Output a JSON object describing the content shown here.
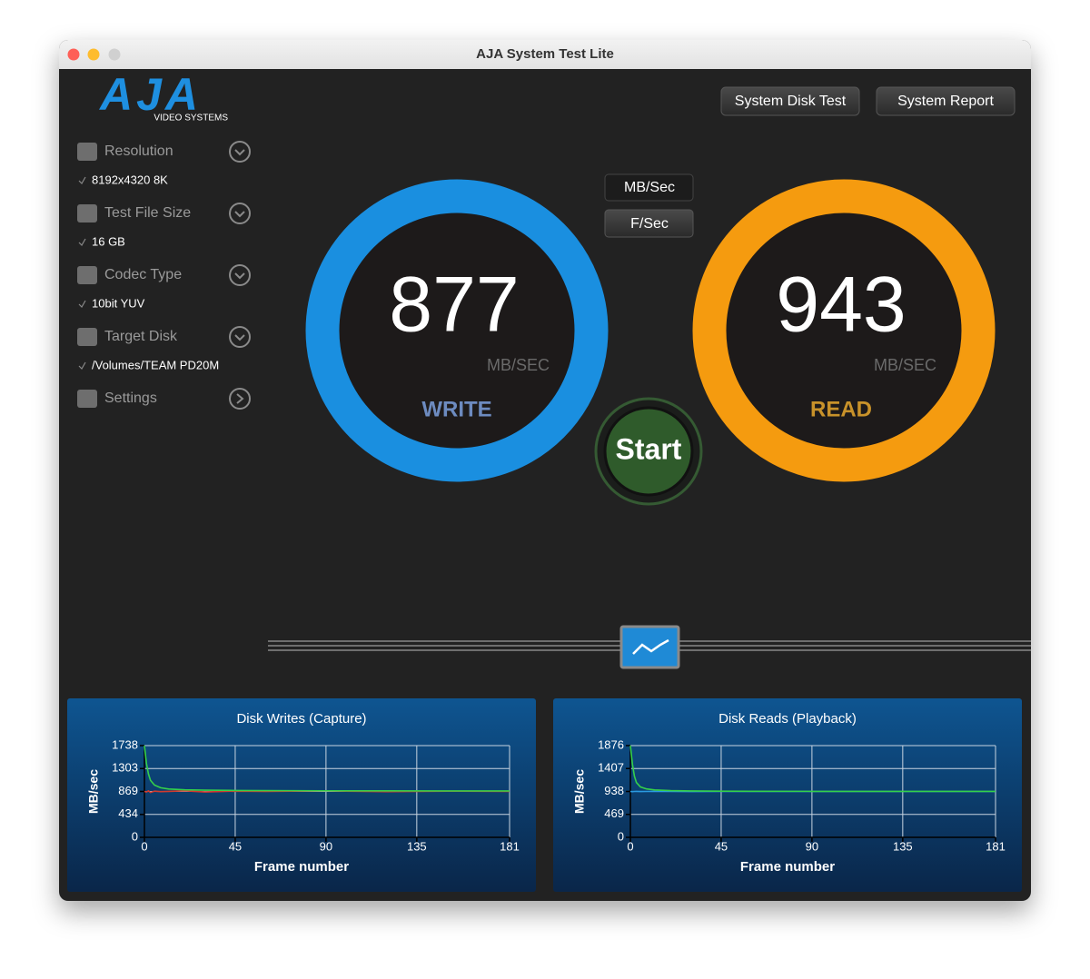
{
  "window": {
    "title": "AJA System Test Lite"
  },
  "logo": {
    "text": "AJA",
    "subtitle": "VIDEO SYSTEMS"
  },
  "header": {
    "buttons": [
      "System Disk Test",
      "System Report"
    ]
  },
  "sidebar": {
    "items": [
      {
        "label": "Resolution",
        "value": "8192x4320 8K"
      },
      {
        "label": "Test File Size",
        "value": "16 GB"
      },
      {
        "label": "Codec Type",
        "value": "10bit YUV"
      },
      {
        "label": "Target Disk",
        "value": "/Volumes/TEAM PD20M"
      },
      {
        "label": "Settings"
      }
    ]
  },
  "unit_toggle": [
    "MB/Sec",
    "F/Sec"
  ],
  "gauges": {
    "write": {
      "value": 877,
      "unit": "MB/SEC",
      "label": "WRITE"
    },
    "read": {
      "value": 943,
      "unit": "MB/SEC",
      "label": "READ"
    }
  },
  "start_button": "Start",
  "chart_data": [
    {
      "type": "line",
      "title": "Disk Writes (Capture)",
      "y_label": "MB/sec",
      "x_label": "Frame number",
      "x": [
        0,
        1,
        2,
        3,
        5,
        8,
        12,
        20,
        30,
        45,
        60,
        90,
        120,
        150,
        181
      ],
      "series": [
        {
          "color": "#d03a2e",
          "values": [
            869,
            860,
            880,
            850,
            875,
            865,
            870,
            880,
            860,
            875,
            870,
            880,
            865,
            875,
            870
          ]
        },
        {
          "color": "#35d04a",
          "values": [
            1738,
            1400,
            1200,
            1080,
            990,
            940,
            915,
            900,
            893,
            888,
            885,
            882,
            880,
            879,
            878
          ]
        }
      ],
      "xlim": [
        0,
        181
      ],
      "xticks": [
        0,
        45,
        90,
        135,
        181
      ],
      "ylim": [
        0,
        1738
      ],
      "yticks": [
        0,
        434,
        869,
        1303,
        1738
      ],
      "grid": true
    },
    {
      "type": "line",
      "title": "Disk Reads (Playback)",
      "y_label": "MB/sec",
      "x_label": "Frame number",
      "x": [
        0,
        1,
        2,
        3,
        5,
        8,
        12,
        20,
        30,
        45,
        60,
        90,
        120,
        150,
        181
      ],
      "series": [
        {
          "color": "#2a9ae0",
          "values": [
            938,
            935,
            938,
            940,
            937,
            938,
            939,
            938,
            937,
            938,
            938,
            939,
            938,
            938,
            938
          ]
        },
        {
          "color": "#35d04a",
          "values": [
            1876,
            1500,
            1250,
            1120,
            1030,
            990,
            970,
            955,
            948,
            944,
            942,
            940,
            940,
            939,
            939
          ]
        }
      ],
      "xlim": [
        0,
        181
      ],
      "xticks": [
        0,
        45,
        90,
        135,
        181
      ],
      "ylim": [
        0,
        1876
      ],
      "yticks": [
        0,
        469,
        938,
        1407,
        1876
      ],
      "grid": true
    }
  ]
}
